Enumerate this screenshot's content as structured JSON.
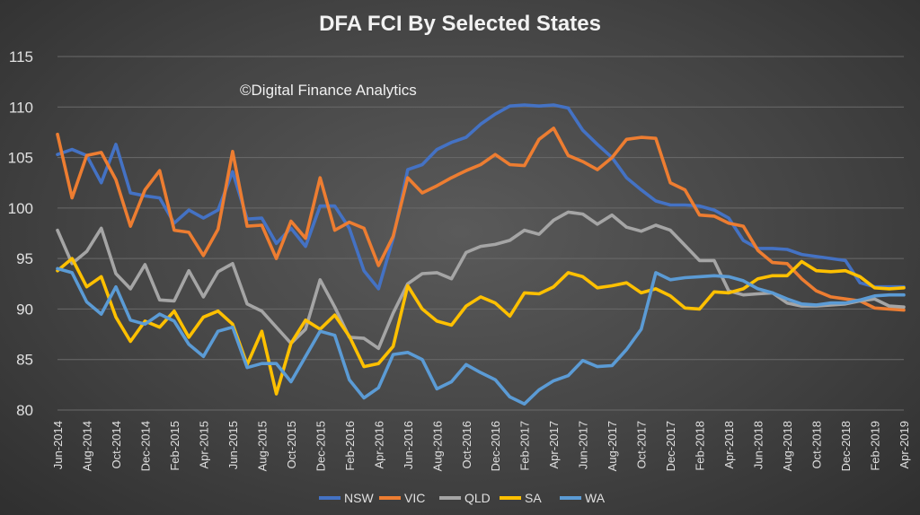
{
  "chart_data": {
    "type": "line",
    "title": "DFA FCI By Selected States",
    "annotation": "©Digital Finance Analytics",
    "xlabel": "",
    "ylabel": "",
    "ylim": [
      80,
      115
    ],
    "yticks": [
      80,
      85,
      90,
      95,
      100,
      105,
      110,
      115
    ],
    "grid": true,
    "legend_position": "bottom",
    "x": [
      "Jun-2014",
      "Jul-2014",
      "Aug-2014",
      "Sep-2014",
      "Oct-2014",
      "Nov-2014",
      "Dec-2014",
      "Jan-2015",
      "Feb-2015",
      "Mar-2015",
      "Apr-2015",
      "May-2015",
      "Jun-2015",
      "Jul-2015",
      "Aug-2015",
      "Sep-2015",
      "Oct-2015",
      "Nov-2015",
      "Dec-2015",
      "Jan-2016",
      "Feb-2016",
      "Mar-2016",
      "Apr-2016",
      "May-2016",
      "Jun-2016",
      "Jul-2016",
      "Aug-2016",
      "Sep-2016",
      "Oct-2016",
      "Nov-2016",
      "Dec-2016",
      "Jan-2017",
      "Feb-2017",
      "Mar-2017",
      "Apr-2017",
      "May-2017",
      "Jun-2017",
      "Jul-2017",
      "Aug-2017",
      "Sep-2017",
      "Oct-2017",
      "Nov-2017",
      "Dec-2017",
      "Jan-2018",
      "Feb-2018",
      "Mar-2018",
      "Apr-2018",
      "May-2018",
      "Jun-2018",
      "Jul-2018",
      "Aug-2018",
      "Sep-2018",
      "Oct-2018",
      "Nov-2018",
      "Dec-2018",
      "Jan-2019",
      "Feb-2019",
      "Mar-2019",
      "Apr-2019"
    ],
    "xtick_labels": [
      "Jun-2014",
      "Aug-2014",
      "Oct-2014",
      "Dec-2014",
      "Feb-2015",
      "Apr-2015",
      "Jun-2015",
      "Aug-2015",
      "Oct-2015",
      "Dec-2015",
      "Feb-2016",
      "Apr-2016",
      "Jun-2016",
      "Aug-2016",
      "Oct-2016",
      "Dec-2016",
      "Feb-2017",
      "Apr-2017",
      "Jun-2017",
      "Aug-2017",
      "Oct-2017",
      "Dec-2017",
      "Feb-2018",
      "Apr-2018",
      "Jun-2018",
      "Aug-2018",
      "Oct-2018",
      "Dec-2018",
      "Feb-2019",
      "Apr-2019"
    ],
    "series": [
      {
        "name": "NSW",
        "color": "#4472C4",
        "values": [
          105.3,
          105.8,
          105.2,
          102.5,
          106.3,
          101.5,
          101.2,
          101.0,
          98.5,
          99.8,
          99.0,
          99.8,
          103.6,
          98.9,
          99.0,
          96.5,
          98.0,
          96.2,
          100.2,
          100.2,
          98.0,
          93.8,
          92.0,
          97.0,
          103.8,
          104.3,
          105.8,
          106.5,
          107.0,
          108.3,
          109.3,
          110.1,
          110.2,
          110.1,
          110.2,
          109.9,
          107.7,
          106.3,
          105.0,
          103.0,
          101.8,
          100.7,
          100.3,
          100.3,
          100.2,
          99.8,
          99.0,
          96.8,
          96.0,
          96.0,
          95.9,
          95.4,
          95.2,
          95.0,
          94.8,
          92.6,
          92.2,
          92.2,
          92.2
        ]
      },
      {
        "name": "VIC",
        "color": "#ED7D31",
        "values": [
          107.3,
          101.0,
          105.2,
          105.5,
          102.8,
          98.2,
          101.8,
          103.7,
          97.8,
          97.6,
          95.3,
          97.9,
          105.6,
          98.2,
          98.3,
          95.0,
          98.7,
          97.0,
          103.0,
          97.8,
          98.6,
          98.0,
          94.3,
          97.2,
          103.0,
          101.5,
          102.2,
          103.0,
          103.7,
          104.3,
          105.3,
          104.3,
          104.2,
          106.8,
          107.9,
          105.2,
          104.6,
          103.8,
          105.0,
          106.8,
          107.0,
          106.9,
          102.5,
          101.8,
          99.3,
          99.2,
          98.5,
          98.2,
          95.8,
          94.6,
          94.5,
          93.0,
          91.8,
          91.2,
          91.0,
          90.8,
          90.1,
          90.0,
          89.9
        ]
      },
      {
        "name": "QLD",
        "color": "#A5A5A5",
        "values": [
          97.8,
          94.5,
          95.7,
          98.0,
          93.5,
          92.0,
          94.4,
          90.9,
          90.8,
          93.8,
          91.2,
          93.7,
          94.5,
          90.5,
          89.8,
          88.2,
          86.6,
          88.0,
          92.9,
          90.2,
          87.2,
          87.1,
          86.1,
          89.6,
          92.5,
          93.5,
          93.6,
          93.0,
          95.6,
          96.2,
          96.4,
          96.8,
          97.8,
          97.4,
          98.8,
          99.6,
          99.4,
          98.4,
          99.3,
          98.1,
          97.7,
          98.3,
          97.8,
          96.3,
          94.8,
          94.8,
          91.8,
          91.4,
          91.5,
          91.6,
          90.6,
          90.3,
          90.3,
          90.4,
          90.5,
          90.8,
          91.0,
          90.3,
          90.2
        ]
      },
      {
        "name": "SA",
        "color": "#FFC000",
        "values": [
          93.8,
          95.0,
          92.2,
          93.2,
          89.2,
          86.8,
          88.8,
          88.2,
          89.8,
          87.2,
          89.2,
          89.8,
          88.5,
          84.5,
          87.8,
          81.6,
          86.6,
          88.9,
          88.0,
          89.4,
          87.3,
          84.3,
          84.6,
          86.3,
          92.3,
          90.0,
          88.8,
          88.4,
          90.3,
          91.2,
          90.6,
          89.3,
          91.6,
          91.5,
          92.2,
          93.6,
          93.2,
          92.1,
          92.3,
          92.6,
          91.6,
          92.0,
          91.3,
          90.1,
          90.0,
          91.7,
          91.6,
          92.0,
          93.0,
          93.3,
          93.3,
          94.7,
          93.8,
          93.7,
          93.8,
          93.2,
          92.1,
          92.0,
          92.1
        ]
      },
      {
        "name": "WA",
        "color": "#5B9BD5",
        "values": [
          94.0,
          93.6,
          90.7,
          89.5,
          92.2,
          88.9,
          88.5,
          89.5,
          88.8,
          86.5,
          85.3,
          87.8,
          88.2,
          84.2,
          84.6,
          84.6,
          82.8,
          85.3,
          87.8,
          87.4,
          83.0,
          81.2,
          82.2,
          85.5,
          85.7,
          85.0,
          82.1,
          82.8,
          84.5,
          83.7,
          83.0,
          81.3,
          80.6,
          82.0,
          82.9,
          83.4,
          84.9,
          84.3,
          84.4,
          86.0,
          88.0,
          93.6,
          92.9,
          93.1,
          93.2,
          93.3,
          93.2,
          92.8,
          92.0,
          91.6,
          91.0,
          90.5,
          90.4,
          90.6,
          90.6,
          90.9,
          91.3,
          91.4,
          91.4
        ]
      }
    ]
  }
}
